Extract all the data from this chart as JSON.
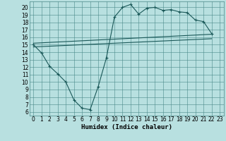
{
  "xlabel": "Humidex (Indice chaleur)",
  "bg_color": "#b8e0e0",
  "grid_color": "#4a8888",
  "line_color": "#1a5858",
  "xlim": [
    -0.5,
    23.5
  ],
  "ylim": [
    5.5,
    20.8
  ],
  "xticks": [
    0,
    1,
    2,
    3,
    4,
    5,
    6,
    7,
    8,
    9,
    10,
    11,
    12,
    13,
    14,
    15,
    16,
    17,
    18,
    19,
    20,
    21,
    22,
    23
  ],
  "yticks": [
    6,
    7,
    8,
    9,
    10,
    11,
    12,
    13,
    14,
    15,
    16,
    17,
    18,
    19,
    20
  ],
  "line1_x": [
    0,
    1,
    2,
    3,
    4,
    5,
    6,
    7,
    8,
    9,
    10,
    11,
    12,
    13,
    14,
    15,
    16,
    17,
    18,
    19,
    20,
    21,
    22
  ],
  "line1_y": [
    15.0,
    13.9,
    12.1,
    11.1,
    10.0,
    7.6,
    6.5,
    6.3,
    9.4,
    13.2,
    18.7,
    20.0,
    20.4,
    19.1,
    19.9,
    20.0,
    19.6,
    19.7,
    19.4,
    19.3,
    18.3,
    18.1,
    16.5
  ],
  "line2_x": [
    0,
    22
  ],
  "line2_y": [
    15.2,
    16.4
  ],
  "line3_x": [
    0,
    22
  ],
  "line3_y": [
    14.7,
    15.8
  ],
  "figsize": [
    3.2,
    2.0
  ],
  "dpi": 100,
  "tick_fontsize": 5.5,
  "xlabel_fontsize": 6.5
}
